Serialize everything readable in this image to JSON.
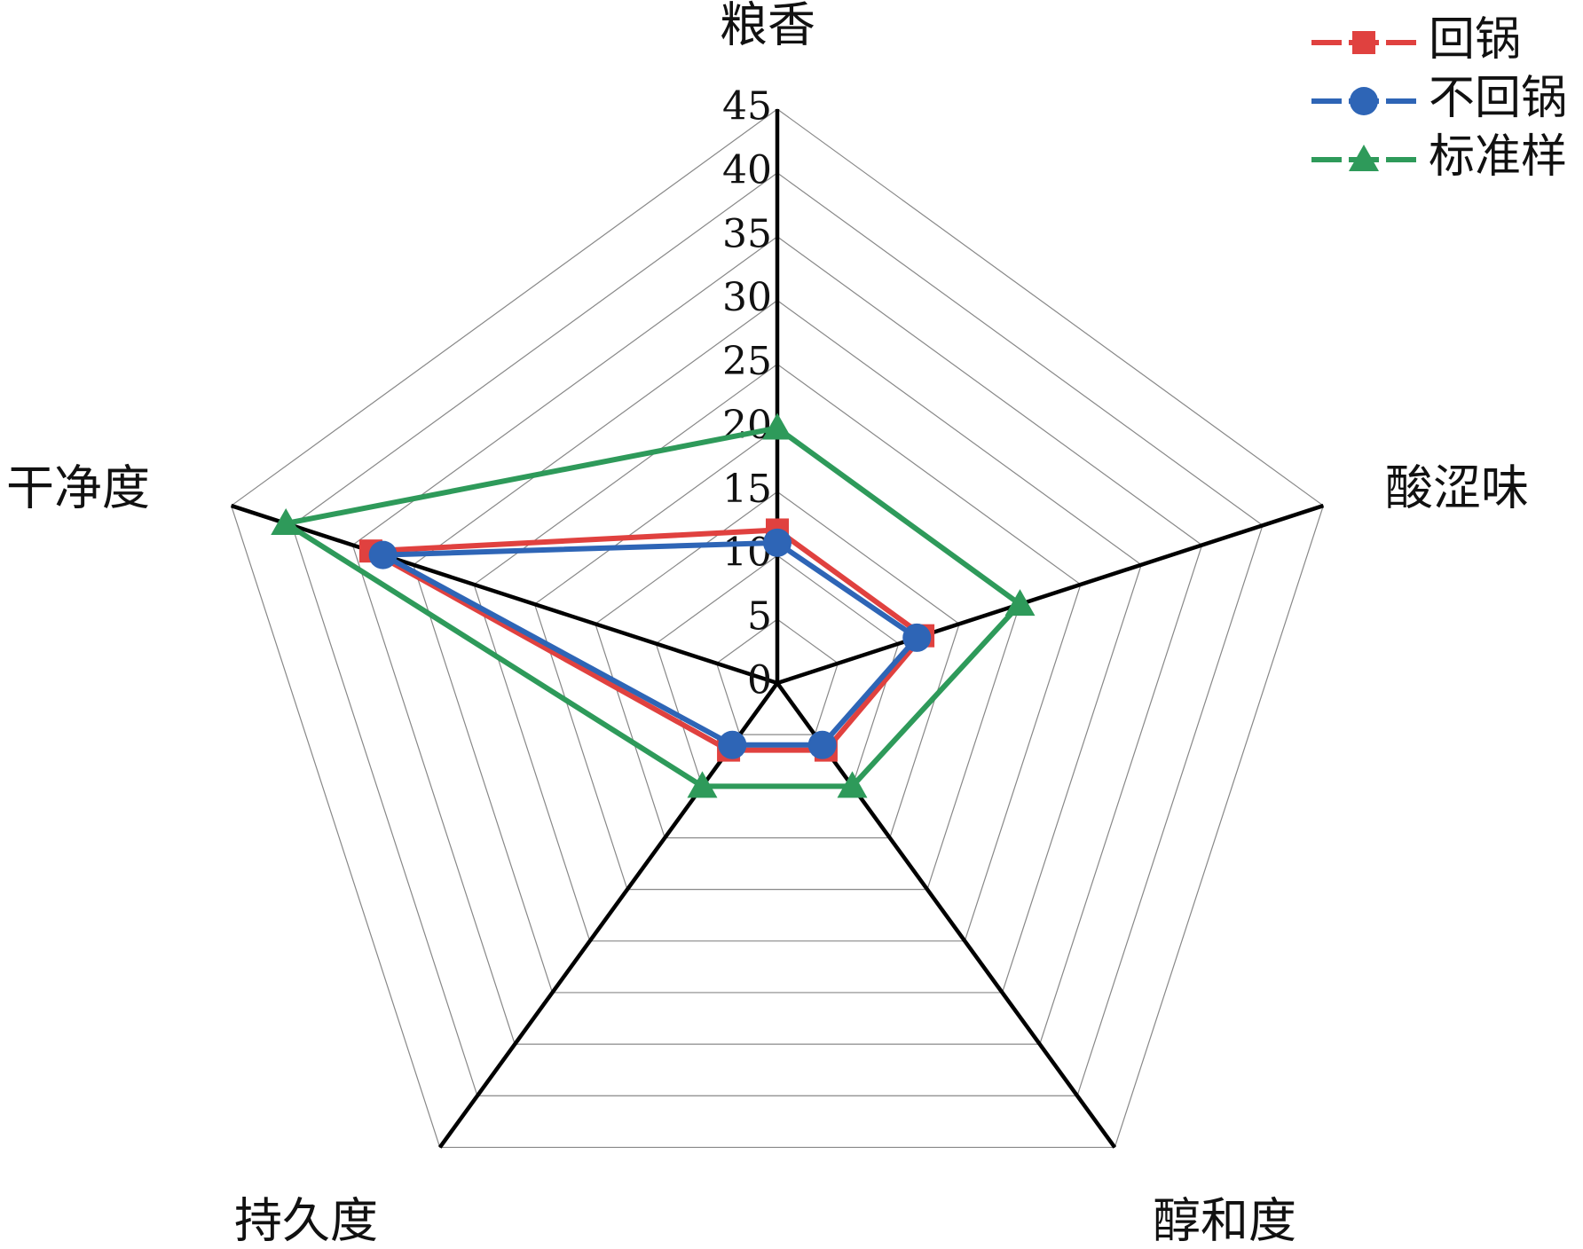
{
  "chart_data": {
    "type": "radar",
    "categories": [
      "粮香",
      "酸涩味",
      "醇和度",
      "持久度",
      "干净度"
    ],
    "series": [
      {
        "name": "回锅",
        "color": "#e0413f",
        "marker": "square",
        "values": [
          12,
          12,
          6.5,
          6.5,
          33.5
        ]
      },
      {
        "name": "不回锅",
        "color": "#2e65b6",
        "marker": "circle",
        "values": [
          11,
          11.5,
          6,
          6,
          32.5
        ]
      },
      {
        "name": "标准样",
        "color": "#2e9a5a",
        "marker": "triangle",
        "values": [
          20,
          20,
          10,
          10,
          40.5
        ]
      }
    ],
    "rlim": [
      0,
      45
    ],
    "rticks": [
      0,
      5,
      10,
      15,
      20,
      25,
      30,
      35,
      40,
      45
    ],
    "grid": true,
    "legend": "top-right"
  }
}
